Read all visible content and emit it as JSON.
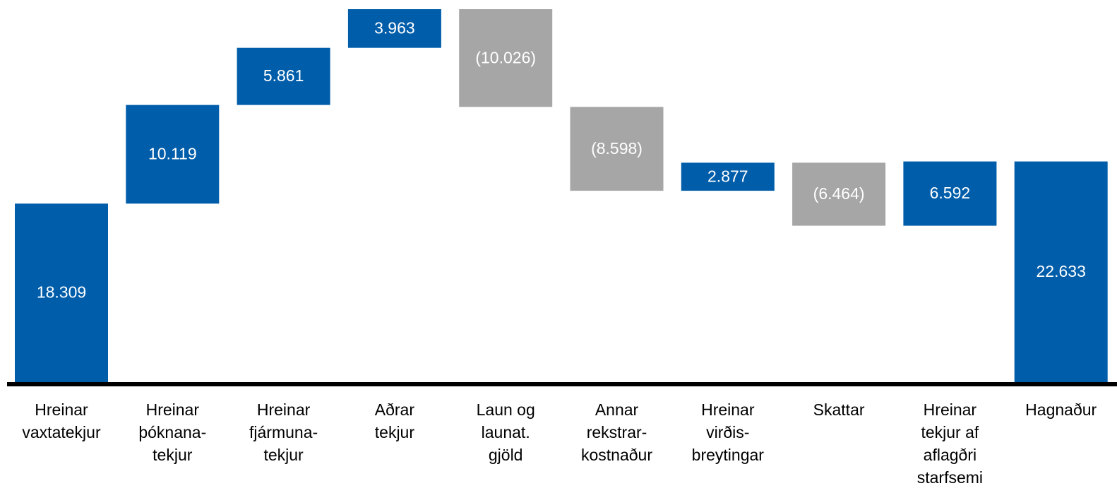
{
  "chart_data": {
    "type": "waterfall",
    "categories": [
      "Hreinar\nvaxtatekjur",
      "Hreinar\nþóknana-\ntekjur",
      "Hreinar\nfjármuna-\ntekjur",
      "Aðrar\ntekjur",
      "Laun og\nlaunat.\ngjöld",
      "Annar\nrekstrar-\nkostnaður",
      "Hreinar\nvirðis-\nbreytingar",
      "Skattar",
      "Hreinar\ntekjur af\naflagðri\nstarfsemi",
      "Hagnaður"
    ],
    "values": [
      18309,
      10119,
      5861,
      3963,
      -10026,
      -8598,
      2877,
      -6464,
      6592,
      22633
    ],
    "value_labels": [
      "18.309",
      "10.119",
      "5.861",
      "3.963",
      "(10.026)",
      "(8.598)",
      "2.877",
      "(6.464)",
      "6.592",
      "22.633"
    ],
    "is_total": [
      false,
      false,
      false,
      false,
      false,
      false,
      false,
      false,
      false,
      true
    ],
    "positive_color": "#005daa",
    "negative_color": "#a6a6a6"
  }
}
